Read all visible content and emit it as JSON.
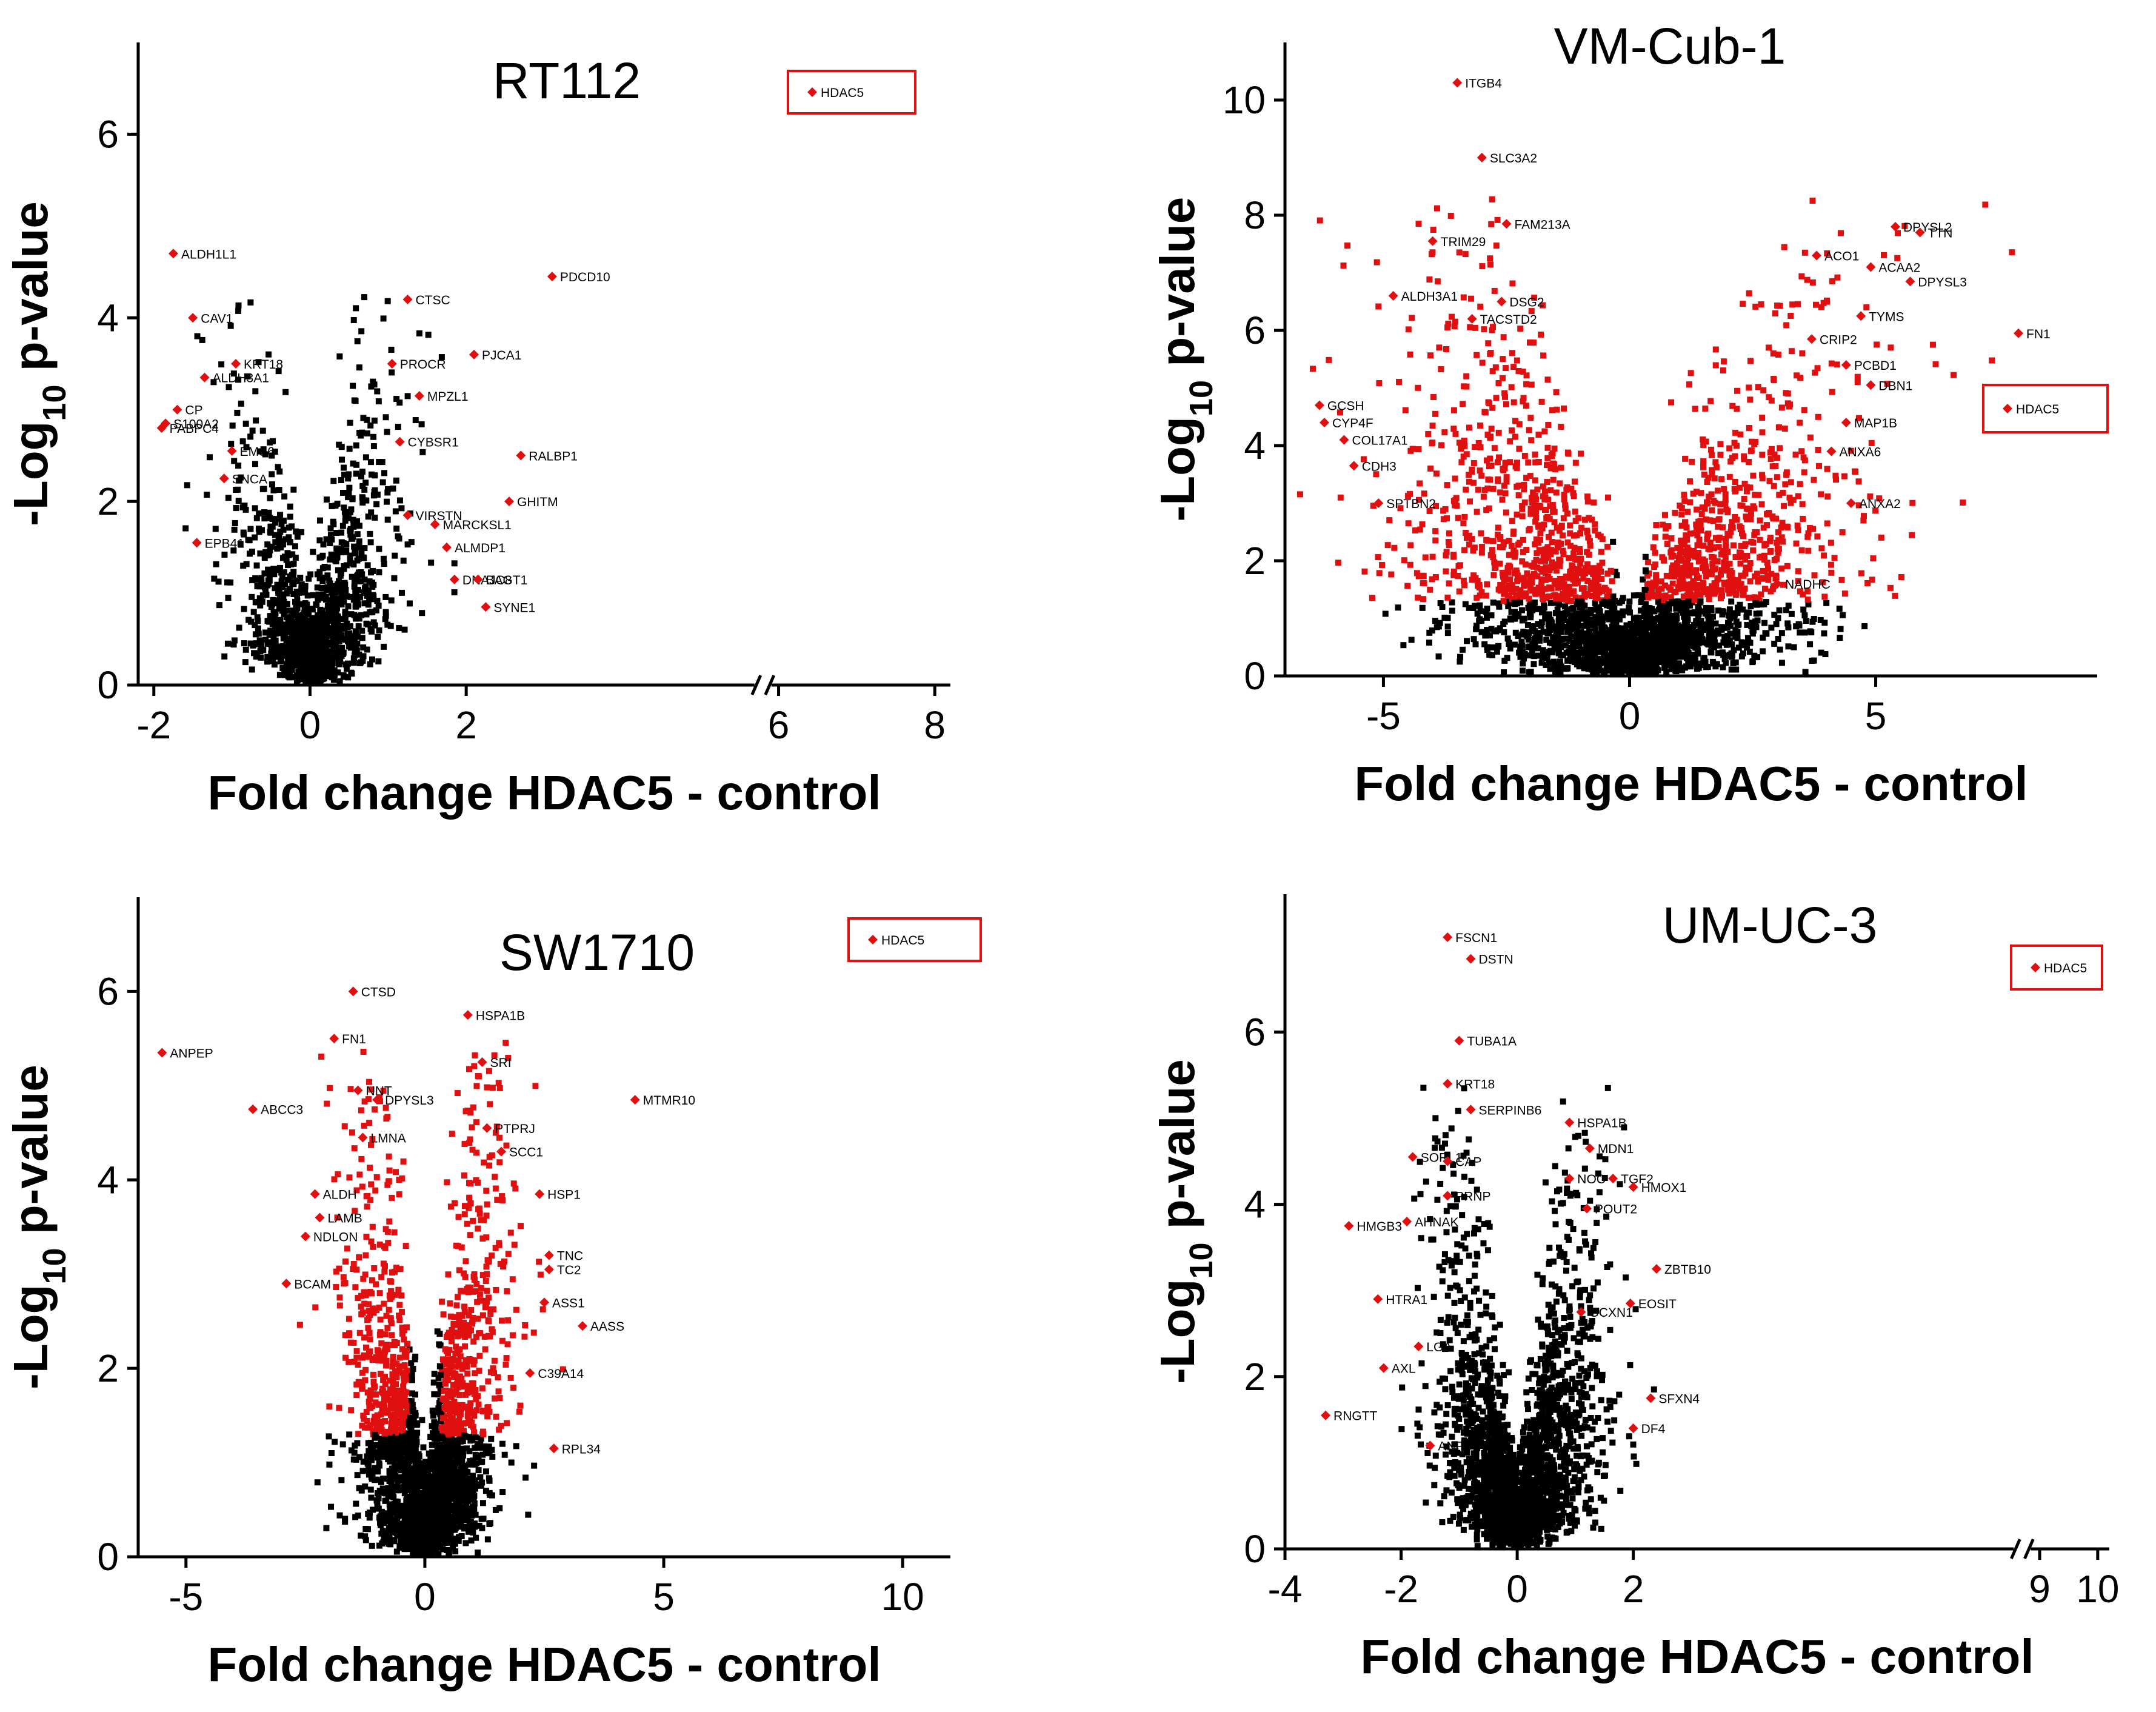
{
  "chart_data": [
    {
      "type": "scatter",
      "title": "RT112",
      "xlabel": "Fold change HDAC5 - control",
      "ylabel_main": "-Log",
      "ylabel_sub": "10",
      "ylabel_suffix": " p-value",
      "xlim": [
        -2.2,
        8.2
      ],
      "ylim": [
        0,
        7
      ],
      "xticks": [
        {
          "v": -2,
          "t": "-2"
        },
        {
          "v": 0,
          "t": "0"
        },
        {
          "v": 2,
          "t": "2"
        },
        {
          "v": 6,
          "t": "6"
        },
        {
          "v": 8,
          "t": "8"
        }
      ],
      "yticks": [
        {
          "v": 0,
          "t": "0"
        },
        {
          "v": 2,
          "t": "2"
        },
        {
          "v": 4,
          "t": "4"
        },
        {
          "v": 6,
          "t": "6"
        }
      ],
      "axis_break_x": 5.8,
      "legend": {
        "label": "HDAC5",
        "position": "top-right"
      },
      "cloud": {
        "n": 1300,
        "xmin": -1.0,
        "xmax": 1.5,
        "ymax": 4.3,
        "sig_color": "#000000"
      },
      "labeled_points": [
        {
          "label": "ALDH1L1",
          "x": -1.75,
          "y": 4.7
        },
        {
          "label": "CAV1",
          "x": -1.5,
          "y": 4.0
        },
        {
          "label": "KRT18",
          "x": -0.95,
          "y": 3.5
        },
        {
          "label": "ALDH3A1",
          "x": -1.35,
          "y": 3.35
        },
        {
          "label": "CP",
          "x": -1.7,
          "y": 3.0
        },
        {
          "label": "S100A2",
          "x": -1.85,
          "y": 2.85
        },
        {
          "label": "PABPC4",
          "x": -1.9,
          "y": 2.8
        },
        {
          "label": "EMS6",
          "x": -1.0,
          "y": 2.55
        },
        {
          "label": "SNCA",
          "x": -1.1,
          "y": 2.25
        },
        {
          "label": "EPB41",
          "x": -1.45,
          "y": 1.55
        },
        {
          "label": "CTSC",
          "x": 1.25,
          "y": 4.2
        },
        {
          "label": "PDCD10",
          "x": 3.1,
          "y": 4.45
        },
        {
          "label": "PROCR",
          "x": 1.05,
          "y": 3.5
        },
        {
          "label": "PJCA1",
          "x": 2.1,
          "y": 3.6
        },
        {
          "label": "MPZL1",
          "x": 1.4,
          "y": 3.15
        },
        {
          "label": "CYBSR1",
          "x": 1.15,
          "y": 2.65
        },
        {
          "label": "RALBP1",
          "x": 2.7,
          "y": 2.5
        },
        {
          "label": "GHITM",
          "x": 2.55,
          "y": 2.0
        },
        {
          "label": "VIRSTN",
          "x": 1.25,
          "y": 1.85
        },
        {
          "label": "MARCKSL1",
          "x": 1.6,
          "y": 1.75
        },
        {
          "label": "ALMDP1",
          "x": 1.75,
          "y": 1.5
        },
        {
          "label": "DNAJC8",
          "x": 1.85,
          "y": 1.15
        },
        {
          "label": "BAGT1",
          "x": 2.15,
          "y": 1.15
        },
        {
          "label": "SYNE1",
          "x": 2.25,
          "y": 0.85
        }
      ]
    },
    {
      "type": "scatter",
      "title": "VM-Cub-1",
      "xlabel": "Fold change HDAC5 - control",
      "ylabel_main": "-Log",
      "ylabel_sub": "10",
      "ylabel_suffix": " p-value",
      "xlim": [
        -7,
        9.5
      ],
      "ylim": [
        0,
        11
      ],
      "xticks": [
        {
          "v": -5,
          "t": "-5"
        },
        {
          "v": 0,
          "t": "0"
        },
        {
          "v": 5,
          "t": "5"
        }
      ],
      "yticks": [
        {
          "v": 0,
          "t": "0"
        },
        {
          "v": 2,
          "t": "2"
        },
        {
          "v": 4,
          "t": "4"
        },
        {
          "v": 6,
          "t": "6"
        },
        {
          "v": 8,
          "t": "8"
        },
        {
          "v": 10,
          "t": "10"
        }
      ],
      "legend": {
        "label": "HDAC5",
        "position": "right"
      },
      "cloud": {
        "n": 3000,
        "xmin": -5.0,
        "xmax": 5.0,
        "ymax": 8.3,
        "sig_color": "#e01010"
      },
      "labeled_points": [
        {
          "label": "ITGB4",
          "x": -3.5,
          "y": 10.3
        },
        {
          "label": "SLC3A2",
          "x": -3.0,
          "y": 9.0
        },
        {
          "label": "FAM213A",
          "x": -2.5,
          "y": 7.85
        },
        {
          "label": "TRIM29",
          "x": -4.0,
          "y": 7.55
        },
        {
          "label": "ALDH3A1",
          "x": -4.8,
          "y": 6.6
        },
        {
          "label": "DSG2",
          "x": -2.6,
          "y": 6.5
        },
        {
          "label": "TACSTD2",
          "x": -3.2,
          "y": 6.2
        },
        {
          "label": "GCSH",
          "x": -6.3,
          "y": 4.7
        },
        {
          "label": "CYP4F",
          "x": -6.2,
          "y": 4.4
        },
        {
          "label": "COL17A1",
          "x": -5.8,
          "y": 4.1
        },
        {
          "label": "CDH3",
          "x": -5.6,
          "y": 3.65
        },
        {
          "label": "SPTBN2",
          "x": -5.1,
          "y": 3.0
        },
        {
          "label": "DPYSL2",
          "x": 5.4,
          "y": 7.8
        },
        {
          "label": "TTN",
          "x": 5.9,
          "y": 7.7
        },
        {
          "label": "ACO1",
          "x": 3.8,
          "y": 7.3
        },
        {
          "label": "ACAA2",
          "x": 4.9,
          "y": 7.1
        },
        {
          "label": "DPYSL3",
          "x": 5.7,
          "y": 6.85
        },
        {
          "label": "TYMS",
          "x": 4.7,
          "y": 6.25
        },
        {
          "label": "FN1",
          "x": 7.9,
          "y": 5.95
        },
        {
          "label": "CRIP2",
          "x": 3.7,
          "y": 5.85
        },
        {
          "label": "PCBD1",
          "x": 4.4,
          "y": 5.4
        },
        {
          "label": "DBN1",
          "x": 4.9,
          "y": 5.05
        },
        {
          "label": "MAP1B",
          "x": 4.4,
          "y": 4.4
        },
        {
          "label": "ANXA6",
          "x": 4.1,
          "y": 3.9
        },
        {
          "label": "ANXA2",
          "x": 4.5,
          "y": 3.0
        },
        {
          "label": "NADHC",
          "x": 3.0,
          "y": 1.6
        }
      ]
    },
    {
      "type": "scatter",
      "title": "SW1710",
      "xlabel": "Fold change HDAC5 - control",
      "ylabel_main": "-Log",
      "ylabel_sub": "10",
      "ylabel_suffix": " p-value",
      "xlim": [
        -6,
        11
      ],
      "ylim": [
        0,
        7
      ],
      "xticks": [
        {
          "v": -5,
          "t": "-5"
        },
        {
          "v": 0,
          "t": "0"
        },
        {
          "v": 5,
          "t": "5"
        },
        {
          "v": 10,
          "t": "10"
        }
      ],
      "yticks": [
        {
          "v": 0,
          "t": "0"
        },
        {
          "v": 2,
          "t": "2"
        },
        {
          "v": 4,
          "t": "4"
        },
        {
          "v": 6,
          "t": "6"
        }
      ],
      "legend": {
        "label": "HDAC5",
        "position": "top-right"
      },
      "cloud": {
        "n": 2600,
        "xmin": -1.8,
        "xmax": 1.9,
        "ymax": 5.5,
        "sig_color": "#e01010"
      },
      "labeled_points": [
        {
          "label": "CTSD",
          "x": -1.5,
          "y": 6.0
        },
        {
          "label": "ANPEP",
          "x": -5.5,
          "y": 5.35
        },
        {
          "label": "FN1",
          "x": -1.9,
          "y": 5.5
        },
        {
          "label": "NNT",
          "x": -1.4,
          "y": 4.95
        },
        {
          "label": "ABCC3",
          "x": -3.6,
          "y": 4.75
        },
        {
          "label": "DPYSL3",
          "x": -1.0,
          "y": 4.85
        },
        {
          "label": "LMNA",
          "x": -1.3,
          "y": 4.45
        },
        {
          "label": "ALDH",
          "x": -2.3,
          "y": 3.85
        },
        {
          "label": "LAMB",
          "x": -2.2,
          "y": 3.6
        },
        {
          "label": "NDLON",
          "x": -2.5,
          "y": 3.4
        },
        {
          "label": "BCAM",
          "x": -2.9,
          "y": 2.9
        },
        {
          "label": "HSPA1B",
          "x": 0.9,
          "y": 5.75
        },
        {
          "label": "SRI",
          "x": 1.2,
          "y": 5.25
        },
        {
          "label": "MTMR10",
          "x": 4.4,
          "y": 4.85
        },
        {
          "label": "PTPRJ",
          "x": 1.3,
          "y": 4.55
        },
        {
          "label": "SCC1",
          "x": 1.6,
          "y": 4.3
        },
        {
          "label": "HSP1",
          "x": 2.4,
          "y": 3.85
        },
        {
          "label": "TNC",
          "x": 2.6,
          "y": 3.2
        },
        {
          "label": "TC2",
          "x": 2.6,
          "y": 3.05
        },
        {
          "label": "ASS1",
          "x": 2.5,
          "y": 2.7
        },
        {
          "label": "AASS",
          "x": 3.3,
          "y": 2.45
        },
        {
          "label": "C39A14",
          "x": 2.2,
          "y": 1.95
        },
        {
          "label": "RPL34",
          "x": 2.7,
          "y": 1.15
        }
      ]
    },
    {
      "type": "scatter",
      "title": "UM-UC-3",
      "xlabel": "Fold change HDAC5 - control",
      "ylabel_main": "-Log",
      "ylabel_sub": "10",
      "ylabel_suffix": " p-value",
      "xlim": [
        -4,
        10.2
      ],
      "ylim": [
        0,
        7.6
      ],
      "xticks": [
        {
          "v": -4,
          "t": "-4"
        },
        {
          "v": -2,
          "t": "-2"
        },
        {
          "v": 0,
          "t": "0"
        },
        {
          "v": 2,
          "t": "2"
        },
        {
          "v": 9,
          "t": "9"
        },
        {
          "v": 10,
          "t": "10"
        }
      ],
      "yticks": [
        {
          "v": 0,
          "t": "0"
        },
        {
          "v": 2,
          "t": "2"
        },
        {
          "v": 4,
          "t": "4"
        },
        {
          "v": 6,
          "t": "6"
        }
      ],
      "axis_break_x": 8.7,
      "legend": {
        "label": "HDAC5",
        "position": "top-right"
      },
      "cloud": {
        "n": 2400,
        "xmin": -1.5,
        "xmax": 1.8,
        "ymax": 5.4,
        "sig_color": "#000000"
      },
      "labeled_points": [
        {
          "label": "FSCN1",
          "x": -1.2,
          "y": 7.1
        },
        {
          "label": "DSTN",
          "x": -0.8,
          "y": 6.85
        },
        {
          "label": "TUBA1A",
          "x": -1.0,
          "y": 5.9
        },
        {
          "label": "KRT18",
          "x": -1.2,
          "y": 5.4
        },
        {
          "label": "SERPINB6",
          "x": -0.8,
          "y": 5.1
        },
        {
          "label": "SORL1",
          "x": -1.8,
          "y": 4.55
        },
        {
          "label": "CAP",
          "x": -1.2,
          "y": 4.5
        },
        {
          "label": "PRNP",
          "x": -1.2,
          "y": 4.1
        },
        {
          "label": "HMGB3",
          "x": -2.9,
          "y": 3.75
        },
        {
          "label": "AHNAK",
          "x": -1.9,
          "y": 3.8
        },
        {
          "label": "HTRA1",
          "x": -2.4,
          "y": 2.9
        },
        {
          "label": "LGA",
          "x": -1.7,
          "y": 2.35
        },
        {
          "label": "AXL",
          "x": -2.3,
          "y": 2.1
        },
        {
          "label": "RNGTT",
          "x": -3.3,
          "y": 1.55
        },
        {
          "label": "ANP",
          "x": -1.5,
          "y": 1.2
        },
        {
          "label": "HSPA1B",
          "x": 0.9,
          "y": 4.95
        },
        {
          "label": "MDN1",
          "x": 1.25,
          "y": 4.65
        },
        {
          "label": "NOC",
          "x": 0.9,
          "y": 4.3
        },
        {
          "label": "TGF2",
          "x": 1.65,
          "y": 4.3
        },
        {
          "label": "HMOX1",
          "x": 2.0,
          "y": 4.2
        },
        {
          "label": "POUT2",
          "x": 1.2,
          "y": 3.95
        },
        {
          "label": "ZBTB10",
          "x": 2.4,
          "y": 3.25
        },
        {
          "label": "EOSIT",
          "x": 1.95,
          "y": 2.85
        },
        {
          "label": "GCXN1",
          "x": 1.1,
          "y": 2.75
        },
        {
          "label": "SFXN4",
          "x": 2.3,
          "y": 1.75
        },
        {
          "label": "DF4",
          "x": 2.0,
          "y": 1.4
        }
      ]
    }
  ]
}
